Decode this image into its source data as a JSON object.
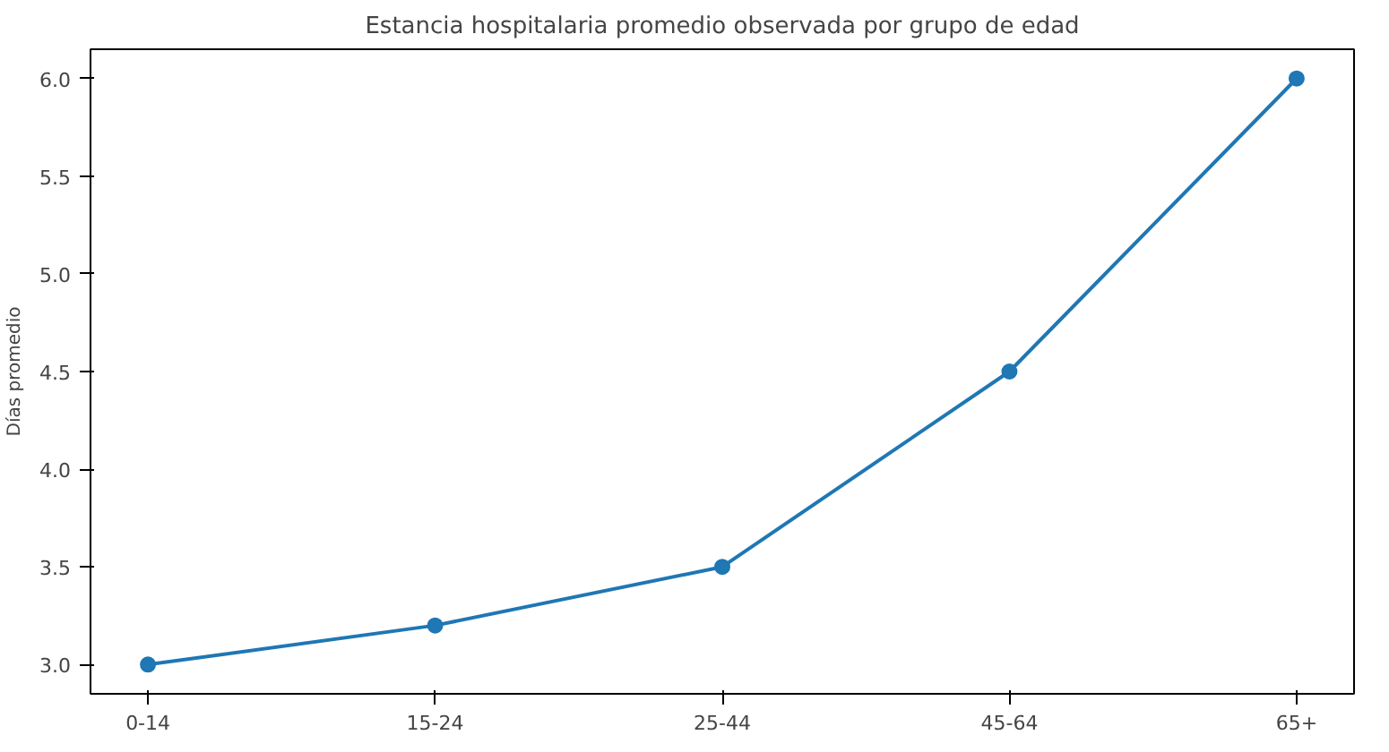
{
  "chart_data": {
    "type": "line",
    "title": "Estancia hospitalaria promedio observada por grupo de edad",
    "ylabel": "Días promedio",
    "categories": [
      "0-14",
      "15-24",
      "25-44",
      "45-64",
      "65+"
    ],
    "series": [
      {
        "color": "#1f77b4",
        "values": [
          3.0,
          3.2,
          3.5,
          4.5,
          6.0
        ]
      }
    ],
    "ylim": [
      2.85,
      6.15
    ],
    "yticks": [
      {
        "value": 3.0,
        "label": "3.0"
      },
      {
        "value": 3.5,
        "label": "3.5"
      },
      {
        "value": 4.0,
        "label": "4.0"
      },
      {
        "value": 4.5,
        "label": "4.5"
      },
      {
        "value": 5.0,
        "label": "5.0"
      },
      {
        "value": 5.5,
        "label": "5.5"
      },
      {
        "value": 6.0,
        "label": "6.0"
      }
    ],
    "marker": "circle",
    "line_style": "solid"
  }
}
